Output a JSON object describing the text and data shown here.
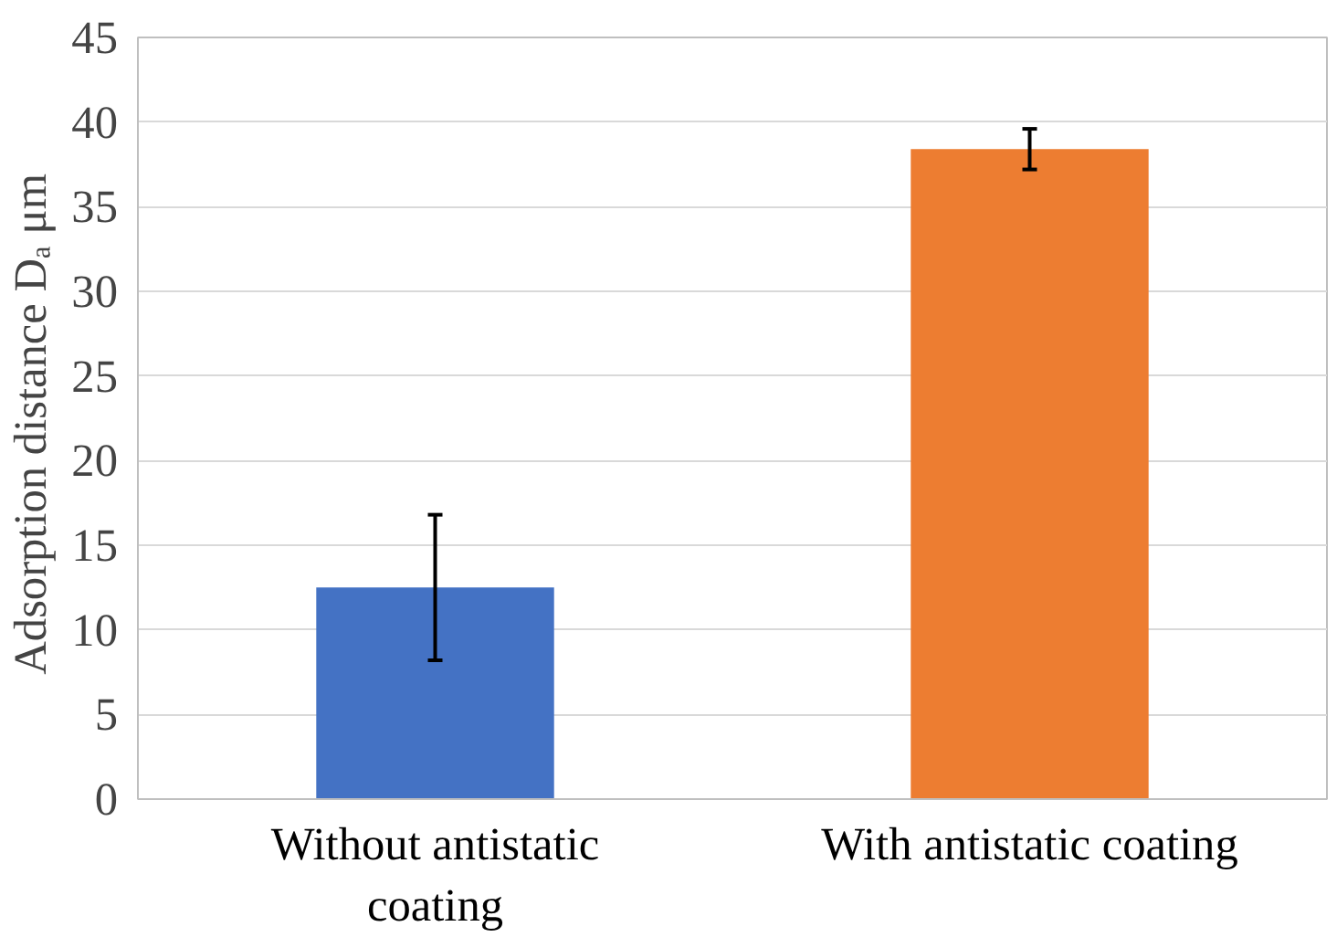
{
  "chart_data": {
    "type": "bar",
    "ylabel": "Adsorption distance Dₐ  μm",
    "categories": [
      "Without antistatic coating",
      "With antistatic coating"
    ],
    "values": [
      12.5,
      38.4
    ],
    "colors": [
      "#4472c4",
      "#ed7d31"
    ],
    "errors": [
      4.3,
      1.2
    ],
    "ylim": [
      0,
      45
    ],
    "yticks": [
      0,
      5,
      10,
      15,
      20,
      25,
      30,
      35,
      40,
      45
    ],
    "grid": "y"
  }
}
